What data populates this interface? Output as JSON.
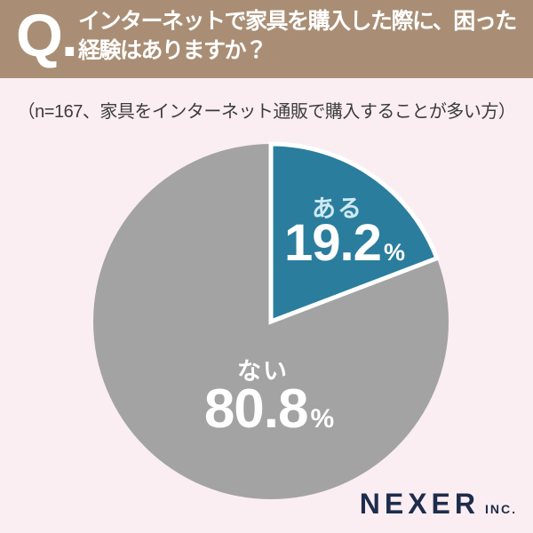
{
  "header": {
    "q_label": "Q.",
    "question_line1": "インターネットで家具を購入した際に、困った",
    "question_line2": "経験はありますか？"
  },
  "subtitle": "（n=167、家具をインターネット通販で購入することが多い方）",
  "chart_data": {
    "type": "pie",
    "title": "インターネットで家具を購入した際に、困った経験はありますか？",
    "sample_note": "n=167、家具をインターネット通販で購入することが多い方",
    "start_at": "top",
    "direction": "clockwise",
    "legend_position": "inside-slices",
    "percent_sign": "%",
    "slices": [
      {
        "label": "ある",
        "value": 19.2,
        "display": "19.2",
        "color": "#2a7d9d"
      },
      {
        "label": "ない",
        "value": 80.8,
        "display": "80.8",
        "color": "#a3a3a3"
      }
    ]
  },
  "footer": {
    "brand": "NEXER",
    "brand_suffix": "INC."
  },
  "colors": {
    "header_bg": "#a98e75",
    "page_bg": "#faeef2",
    "accent_teal": "#2a7d9d",
    "slice_gray": "#a3a3a3",
    "navy": "#1e2c4c",
    "aru_label": "#cfe9f3",
    "subtitle_color": "#3c3c3c",
    "white": "#ffffff"
  }
}
